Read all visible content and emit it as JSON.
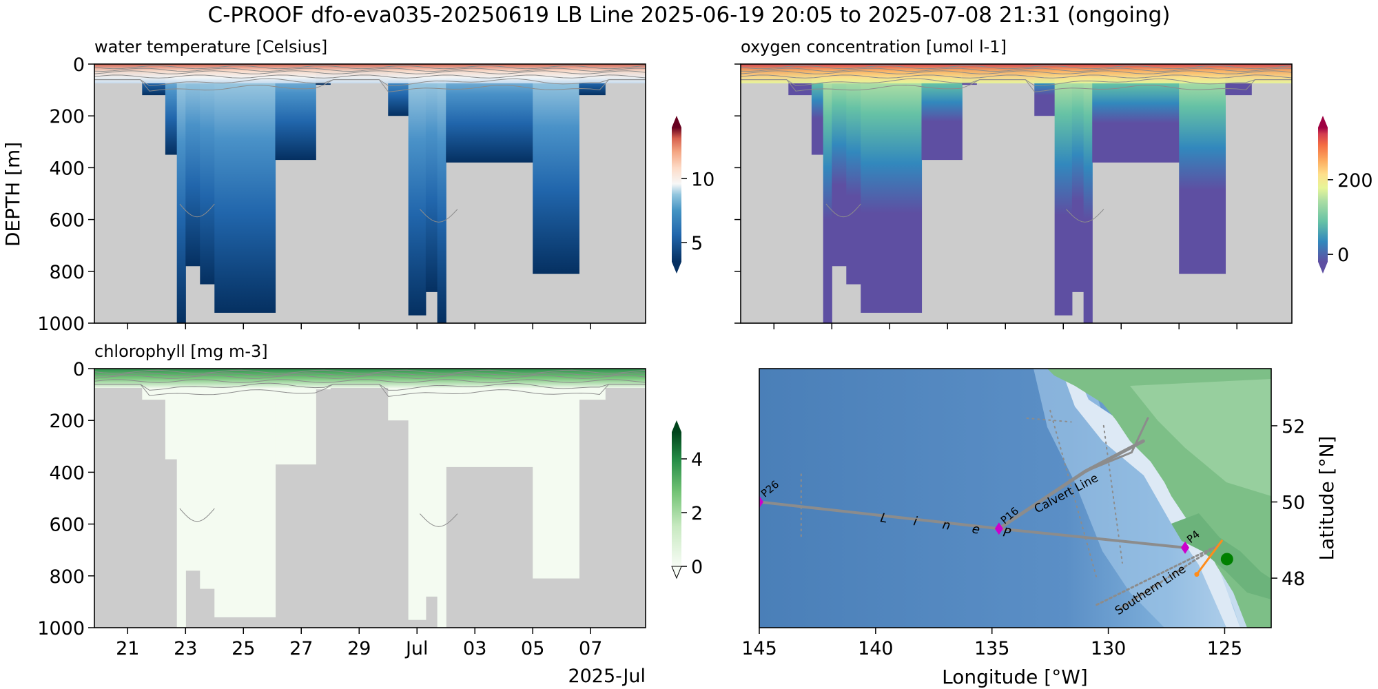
{
  "figure": {
    "title": "C-PROOF dfo-eva035-20250619   LB Line   2025-06-19 20:05 to 2025-07-08 21:31 (ongoing)",
    "ylabel": "DEPTH [m]",
    "date_year_label": "2025-Jul"
  },
  "chart_data": [
    {
      "type": "heatmap",
      "title": "water temperature [Celsius]",
      "ylabel": "DEPTH [m]",
      "ylim": [
        1000,
        0
      ],
      "y_ticks": [
        "0",
        "200",
        "400",
        "600",
        "800",
        "1000"
      ],
      "x_ticks": [
        "21",
        "23",
        "25",
        "27",
        "29",
        "Jul",
        "03",
        "05",
        "07"
      ],
      "colormap": "RdBu_r",
      "colorbar": {
        "ticks": [
          5,
          10
        ],
        "range": [
          3.5,
          14
        ],
        "extend": "both"
      },
      "profiles_max_depth": [
        {
          "day": 19.8,
          "depth": 60
        },
        {
          "day": 21.0,
          "depth": 60
        },
        {
          "day": 21.5,
          "depth": 120
        },
        {
          "day": 22.3,
          "depth": 350
        },
        {
          "day": 22.7,
          "depth": 1000
        },
        {
          "day": 23.0,
          "depth": 780
        },
        {
          "day": 23.5,
          "depth": 850
        },
        {
          "day": 24.0,
          "depth": 960
        },
        {
          "day": 26.1,
          "depth": 370
        },
        {
          "day": 27.5,
          "depth": 80
        },
        {
          "day": 28.0,
          "depth": 60
        },
        {
          "day": 30.0,
          "depth": 200
        },
        {
          "day": 30.7,
          "depth": 970
        },
        {
          "day": 31.3,
          "depth": 880
        },
        {
          "day": 31.7,
          "depth": 1000
        },
        {
          "day": 32.0,
          "depth": 380
        },
        {
          "day": 35.0,
          "depth": 810
        },
        {
          "day": 36.6,
          "depth": 120
        },
        {
          "day": 37.5,
          "depth": 60
        },
        {
          "day": 38.9,
          "depth": 60
        }
      ]
    },
    {
      "type": "heatmap",
      "title": "oxygen concentration [umol l-1]",
      "ylim": [
        1000,
        0
      ],
      "x_ticks": [
        "21",
        "23",
        "25",
        "27",
        "29",
        "Jul",
        "03",
        "05",
        "07"
      ],
      "colormap": "Spectral_r",
      "colorbar": {
        "ticks": [
          0,
          200
        ],
        "range": [
          -20,
          340
        ],
        "extend": "both"
      }
    },
    {
      "type": "heatmap",
      "title": "chlorophyll [mg m-3]",
      "ylabel": "DEPTH [m]",
      "ylim": [
        1000,
        0
      ],
      "y_ticks": [
        "0",
        "200",
        "400",
        "600",
        "800",
        "1000"
      ],
      "x_ticks": [
        "21",
        "23",
        "25",
        "27",
        "29",
        "Jul",
        "03",
        "05",
        "07"
      ],
      "colormap": "Greens",
      "colorbar": {
        "ticks": [
          0,
          2,
          4
        ],
        "range": [
          0,
          5
        ],
        "extend": "both"
      }
    },
    {
      "type": "scatter",
      "title": "",
      "xlabel": "Longitude [°W]",
      "ylabel": "Latitude [°N]",
      "xlim": [
        145,
        123
      ],
      "ylim": [
        46.7,
        53.5
      ],
      "x_ticks": [
        "145",
        "140",
        "135",
        "130",
        "125"
      ],
      "y_ticks": [
        "48",
        "50",
        "52"
      ],
      "line_labels": [
        "L",
        "i",
        "n",
        "e",
        "P"
      ],
      "calvert_label": "Calvert Line",
      "southern_label": "Southern Line",
      "stations": [
        {
          "name": "P26",
          "lon": 145.0,
          "lat": 50.0
        },
        {
          "name": "P16",
          "lon": 134.7,
          "lat": 49.3
        },
        {
          "name": "P4",
          "lon": 126.7,
          "lat": 48.8
        }
      ],
      "glider_position": {
        "lon": 124.9,
        "lat": 48.5
      },
      "track_color": "#8c8c8c",
      "station_color": "#cc00cc",
      "current_track_color": "#ff8c1a",
      "position_color": "#008000"
    }
  ]
}
